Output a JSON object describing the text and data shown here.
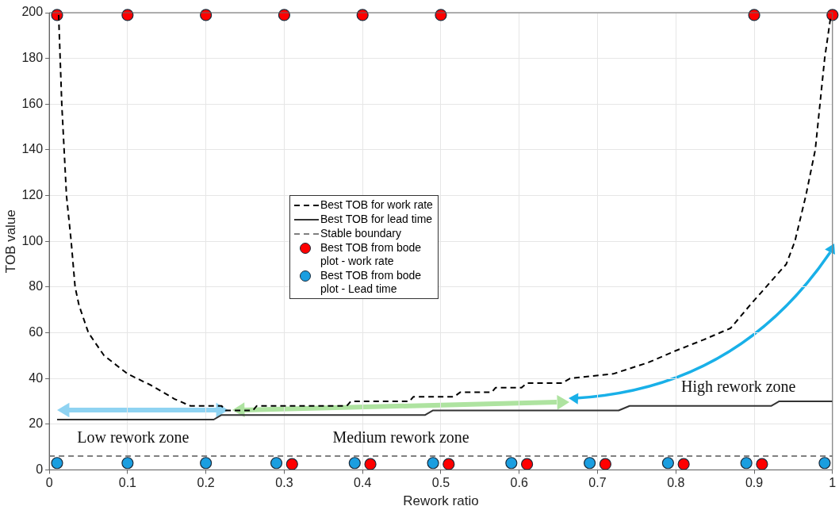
{
  "chart_data": {
    "type": "line",
    "xlabel": "Rework ratio",
    "ylabel": "TOB value",
    "xlim": [
      0,
      1
    ],
    "xticks": [
      0,
      0.1,
      0.2,
      0.3,
      0.4,
      0.5,
      0.6,
      0.7,
      0.8,
      0.9,
      1
    ],
    "ylim": [
      0,
      200
    ],
    "yticks": [
      0,
      20,
      40,
      60,
      80,
      100,
      120,
      140,
      160,
      180,
      200
    ],
    "grid": true,
    "legend": "center",
    "annotations": [
      "Low rework zone",
      "Medium rework zone",
      "High rework zone"
    ],
    "series": [
      {
        "name": "Best TOB for work rate",
        "line_style": "dashed",
        "marker": "none",
        "color": "#000000",
        "x": [
          0.012,
          0.016,
          0.019,
          0.022,
          0.028,
          0.033,
          0.038,
          0.05,
          0.07,
          0.1,
          0.13,
          0.16,
          0.18,
          0.22,
          0.225,
          0.26,
          0.265,
          0.38,
          0.385,
          0.46,
          0.465,
          0.517,
          0.525,
          0.565,
          0.57,
          0.603,
          0.61,
          0.655,
          0.665,
          0.72,
          0.738,
          0.765,
          0.799,
          0.836,
          0.87,
          0.897,
          0.91,
          0.941,
          0.952,
          0.966,
          0.978,
          0.984,
          0.99,
          0.998
        ],
        "values": [
          199,
          160,
          140,
          120,
          100,
          80,
          72,
          60,
          50,
          42,
          37,
          31,
          28,
          28,
          26,
          26,
          28,
          28,
          30,
          30,
          32,
          32,
          34,
          34,
          36,
          36,
          38,
          38,
          40,
          42,
          44,
          47,
          52,
          57,
          62,
          73,
          78,
          90,
          100,
          120,
          140,
          160,
          180,
          199
        ]
      },
      {
        "name": "Best TOB for lead time",
        "line_style": "solid",
        "marker": "none",
        "color": "#333333",
        "x": [
          0.01,
          0.21,
          0.22,
          0.48,
          0.49,
          0.727,
          0.741,
          0.922,
          0.932,
          1
        ],
        "values": [
          22,
          22,
          24,
          24,
          26,
          26,
          28,
          28,
          30,
          30
        ]
      },
      {
        "name": "Stable boundary",
        "line_style": "dashed",
        "marker": "none",
        "color": "#808080",
        "x": [
          0,
          1
        ],
        "values": [
          6,
          6
        ]
      },
      {
        "name": "Best TOB from bode plot - work rate",
        "type": "scatter",
        "marker": "circle",
        "color": "#ff0000",
        "x": [
          0.01,
          0.1,
          0.2,
          0.3,
          0.4,
          0.5,
          0.9,
          1.0,
          0.31,
          0.41,
          0.51,
          0.61,
          0.71,
          0.81,
          0.91
        ],
        "values": [
          199,
          199,
          199,
          199,
          199,
          199,
          199,
          199,
          2.5,
          2.5,
          2.5,
          2.5,
          2.5,
          2.5,
          2.5
        ]
      },
      {
        "name": "Best TOB from bode plot - Lead time",
        "type": "scatter",
        "marker": "circle",
        "color": "#1a9ee0",
        "x": [
          0.01,
          0.1,
          0.2,
          0.29,
          0.39,
          0.49,
          0.59,
          0.69,
          0.79,
          0.89,
          0.99
        ],
        "values": [
          3,
          3,
          3,
          3,
          3,
          3,
          3,
          3,
          3,
          3,
          3
        ]
      }
    ]
  }
}
